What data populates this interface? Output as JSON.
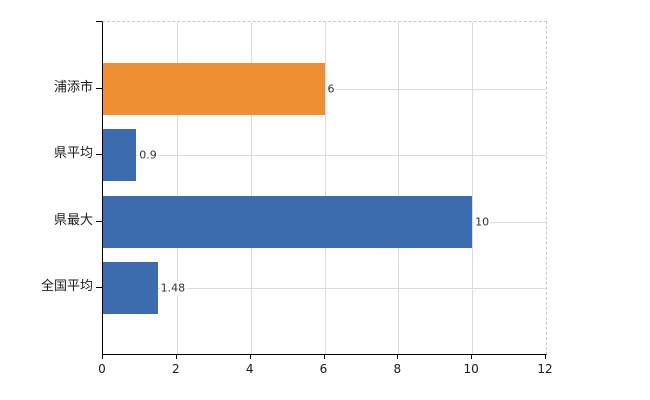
{
  "chart_data": {
    "type": "bar",
    "orientation": "horizontal",
    "title": "",
    "categories": [
      "浦添市",
      "県平均",
      "県最大",
      "全国平均"
    ],
    "values": [
      6,
      0.9,
      10,
      1.48
    ],
    "value_labels": [
      "6",
      "0.9",
      "10",
      "1.48"
    ],
    "bar_colors": [
      "#ee8f33",
      "#3d6cae",
      "#3d6cae",
      "#3d6cae"
    ],
    "xlabel": "",
    "ylabel": "",
    "xlim": [
      0,
      12
    ],
    "x_ticks": [
      0,
      2,
      4,
      6,
      8,
      10,
      12
    ],
    "grid": true,
    "legend": false,
    "border_style": "solid left/bottom axes, dashed top/right border"
  },
  "colors": {
    "bar_orange": "#ee8f33",
    "bar_blue": "#3d6cae",
    "gridline": "#dcdcdc",
    "dashed_border": "#c9c9c9",
    "axis": "#000000",
    "category_text": "#1b1b1b",
    "value_text": "#333333",
    "background": "#ffffff"
  }
}
